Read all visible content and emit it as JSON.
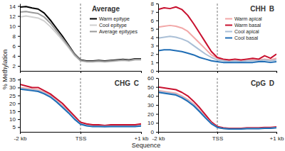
{
  "figure": {
    "x_label": "Sequence",
    "y_label": "% Methylation"
  },
  "chart_data": [
    {
      "type": "line",
      "title": "Average",
      "legend": "upper right",
      "tick_labels": "y",
      "x": [
        0,
        1,
        2,
        3,
        4,
        5,
        6,
        7,
        8,
        9,
        10,
        11,
        12,
        13,
        14,
        15,
        16,
        17,
        18,
        19,
        20
      ],
      "xlim": [
        0,
        20
      ],
      "xticks": [
        0,
        10,
        20
      ],
      "ylim": [
        1,
        14.5
      ],
      "yticks": [
        2,
        4,
        6,
        8,
        10,
        12,
        14
      ],
      "series": [
        {
          "name": "Warm epitype",
          "color": "#000000",
          "values": [
            13.8,
            13.9,
            13.6,
            13.4,
            12.6,
            11.2,
            9.6,
            8.0,
            6.2,
            4.4,
            3.2,
            3.0,
            3.0,
            3.1,
            3.0,
            3.1,
            3.2,
            3.3,
            3.2,
            3.4,
            3.4
          ]
        },
        {
          "name": "Cool epitype",
          "color": "#cfcfcf",
          "values": [
            11.8,
            12.0,
            11.8,
            11.6,
            11.0,
            9.9,
            8.6,
            7.2,
            5.7,
            4.1,
            3.0,
            2.8,
            2.8,
            2.9,
            2.8,
            2.9,
            3.0,
            3.1,
            3.0,
            3.2,
            3.2
          ]
        },
        {
          "name": "Average epitypes",
          "color": "#9a9a9a",
          "values": [
            12.8,
            12.9,
            12.7,
            12.5,
            11.8,
            10.6,
            9.1,
            7.6,
            6.0,
            4.3,
            3.1,
            2.9,
            2.9,
            3.0,
            2.9,
            3.0,
            3.1,
            3.2,
            3.1,
            3.3,
            3.3
          ]
        }
      ]
    },
    {
      "type": "line",
      "title": "CHH",
      "annotations": [
        "B"
      ],
      "legend": "upper right",
      "tick_labels": "y",
      "x": [
        0,
        1,
        2,
        3,
        4,
        5,
        6,
        7,
        8,
        9,
        10,
        11,
        12,
        13,
        14,
        15,
        16,
        17,
        18,
        19,
        20
      ],
      "xlim": [
        0,
        20
      ],
      "xticks": [
        0,
        10,
        20
      ],
      "ylim": [
        0,
        8
      ],
      "yticks": [
        0,
        1,
        2,
        3,
        4,
        5,
        6,
        7,
        8
      ],
      "series": [
        {
          "name": "Warm apical",
          "color": "#f2a7a7",
          "values": [
            5.2,
            5.3,
            5.4,
            5.3,
            5.1,
            4.7,
            4.0,
            3.3,
            2.6,
            1.9,
            1.5,
            1.3,
            1.2,
            1.3,
            1.2,
            1.3,
            1.3,
            1.3,
            1.4,
            1.3,
            1.5
          ]
        },
        {
          "name": "Warm basal",
          "color": "#c8102e",
          "values": [
            7.3,
            7.5,
            7.4,
            7.6,
            7.3,
            6.6,
            5.6,
            4.5,
            3.4,
            2.3,
            1.6,
            1.4,
            1.3,
            1.4,
            1.3,
            1.4,
            1.5,
            1.4,
            1.8,
            1.5,
            2.0
          ]
        },
        {
          "name": "Cool apical",
          "color": "#aabfd6",
          "values": [
            3.9,
            4.0,
            4.1,
            4.0,
            3.8,
            3.5,
            3.0,
            2.5,
            2.0,
            1.6,
            1.3,
            1.2,
            1.1,
            1.2,
            1.1,
            1.2,
            1.2,
            1.2,
            1.3,
            1.2,
            1.3
          ]
        },
        {
          "name": "Cool basal",
          "color": "#1f6db5",
          "values": [
            2.4,
            2.5,
            2.5,
            2.4,
            2.3,
            2.1,
            1.9,
            1.6,
            1.4,
            1.2,
            1.1,
            1.0,
            1.0,
            1.0,
            1.0,
            1.0,
            1.0,
            1.1,
            1.1,
            1.0,
            1.1
          ]
        }
      ]
    },
    {
      "type": "line",
      "title": "CHG",
      "annotations": [
        "C"
      ],
      "x": [
        0,
        1,
        2,
        3,
        4,
        5,
        6,
        7,
        8,
        9,
        10,
        11,
        12,
        13,
        14,
        15,
        16,
        17,
        18,
        19,
        20
      ],
      "xlim": [
        0,
        20
      ],
      "xticks": [
        {
          "value": 0,
          "label": "-2 kb"
        },
        {
          "value": 10,
          "label": "TSS"
        },
        {
          "value": 20,
          "label": "+1 kb"
        }
      ],
      "ylim": [
        2,
        36
      ],
      "yticks": [
        5,
        10,
        15,
        20,
        25,
        30,
        35
      ],
      "series": [
        {
          "color": "#f2a7a7",
          "values": [
            30,
            29.5,
            29,
            28.5,
            27,
            25,
            22,
            18.5,
            15,
            11,
            7.5,
            6.5,
            6,
            6,
            5.5,
            6,
            6,
            6,
            6,
            6,
            6.5
          ]
        },
        {
          "color": "#c8102e",
          "values": [
            32,
            31,
            30,
            30,
            28,
            26,
            23,
            20,
            16,
            12,
            8,
            7,
            6.5,
            6.5,
            6,
            6.5,
            6.5,
            6.5,
            6.5,
            6.5,
            7
          ]
        },
        {
          "color": "#aabfd6",
          "values": [
            29.5,
            29,
            28.5,
            28,
            26.5,
            24.5,
            21.5,
            18,
            14.5,
            10.5,
            7,
            6,
            5.5,
            5.5,
            5.5,
            5.5,
            5.5,
            5.5,
            5.5,
            5.5,
            6
          ]
        },
        {
          "color": "#1f6db5",
          "values": [
            29,
            28.5,
            28,
            27.5,
            26,
            24,
            21,
            17.5,
            14,
            10,
            6.8,
            5.8,
            5.3,
            5.3,
            5.2,
            5.3,
            5.3,
            5.3,
            5.3,
            5.4,
            5.7
          ]
        }
      ]
    },
    {
      "type": "line",
      "title": "CpG",
      "annotations": [
        "D"
      ],
      "x": [
        0,
        1,
        2,
        3,
        4,
        5,
        6,
        7,
        8,
        9,
        10,
        11,
        12,
        13,
        14,
        15,
        16,
        17,
        18,
        19,
        20
      ],
      "xlim": [
        0,
        20
      ],
      "xticks": [
        {
          "value": 0,
          "label": "-2 kb"
        },
        {
          "value": 10,
          "label": "TSS"
        },
        {
          "value": 20,
          "label": "+1 kb"
        }
      ],
      "ylim": [
        0,
        60
      ],
      "yticks": [
        0,
        10,
        20,
        30,
        40,
        50,
        60
      ],
      "series": [
        {
          "color": "#f2a7a7",
          "values": [
            46,
            45,
            44,
            43,
            40,
            36,
            31,
            24,
            17,
            10,
            5.5,
            4,
            3.5,
            3.5,
            3.5,
            4,
            4,
            4,
            4.5,
            4.5,
            5
          ]
        },
        {
          "color": "#c8102e",
          "values": [
            50,
            49,
            48,
            47,
            44,
            40,
            34,
            27,
            19,
            11,
            6,
            4.5,
            4,
            4,
            4,
            4.5,
            4.5,
            4.5,
            5,
            5,
            5.5
          ]
        },
        {
          "color": "#aabfd6",
          "values": [
            45,
            44,
            43,
            42,
            39,
            35,
            30,
            23,
            16,
            9.5,
            5,
            3.8,
            3.3,
            3.3,
            3.3,
            3.8,
            3.8,
            3.8,
            4.2,
            4.2,
            4.7
          ]
        },
        {
          "color": "#1f6db5",
          "values": [
            44,
            43,
            42,
            41,
            38,
            34,
            29,
            22.5,
            15.5,
            9,
            5,
            3.7,
            3.2,
            3.2,
            3.2,
            3.6,
            3.6,
            3.6,
            4,
            4,
            4.5
          ]
        }
      ]
    }
  ]
}
